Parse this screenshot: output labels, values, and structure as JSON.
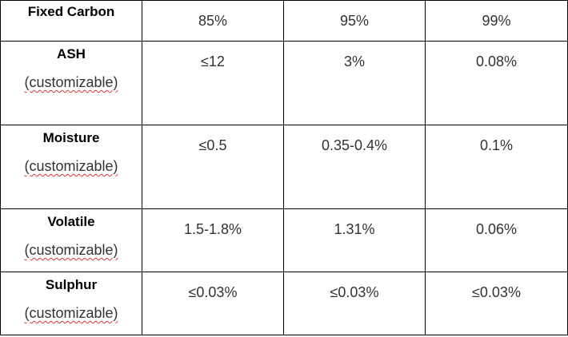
{
  "table": {
    "rows": [
      {
        "label": "Fixed Carbon",
        "values": [
          "85%",
          "95%",
          "99%"
        ]
      },
      {
        "label": "ASH",
        "note": "(customizable)",
        "values": [
          "≤12",
          "3%",
          "0.08%"
        ]
      },
      {
        "label": "Moisture",
        "note": "(customizable)",
        "values": [
          "≤0.5",
          "0.35-0.4%",
          "0.1%"
        ]
      },
      {
        "label": "Volatile",
        "note": "(customizable)",
        "values": [
          "1.5-1.8%",
          "1.31%",
          "0.06%"
        ]
      },
      {
        "label": "Sulphur",
        "note": "(customizable)",
        "values": [
          "≤0.03%",
          "≤0.03%",
          "≤0.03%"
        ]
      }
    ]
  }
}
